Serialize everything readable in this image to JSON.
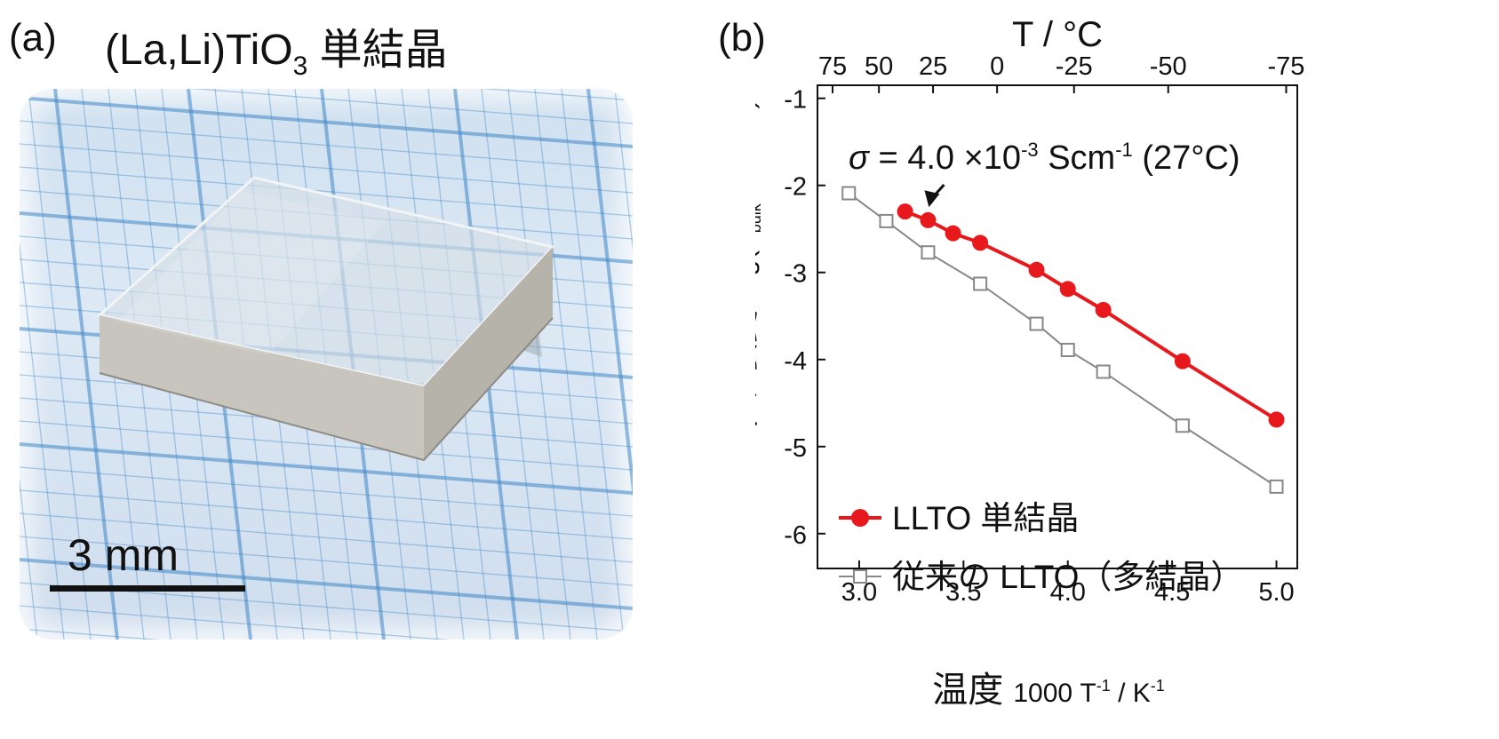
{
  "panel_a": {
    "label": "(a)",
    "title_main": "(La,Li)TiO",
    "title_sub": "3",
    "title_tail": "単結晶",
    "scale_text": "3 mm"
  },
  "panel_b": {
    "label": "(b)"
  },
  "colors": {
    "single_crystal": "#e8191d",
    "polycrystal": "#888888",
    "axis": "#111111"
  },
  "chart_data": {
    "type": "line",
    "title": "",
    "xlabel": "温度 1000 T⁻¹ / K⁻¹",
    "xlabel_parts": {
      "jp": "温度",
      "num": "1000 T",
      "sup1": "-1",
      "mid": " / K",
      "sup2": "-1"
    },
    "ylabel": "イオン伝導度 log(σbulk / Scm-1)",
    "ylabel_parts": {
      "jp": "イオン伝導度",
      "pre": "log(σ",
      "sub": "bulk",
      "mid": " / Scm",
      "sup": "-1",
      "post": ")"
    },
    "top_axis_label": "T / °C",
    "xlim": [
      2.8,
      5.1
    ],
    "ylim": [
      -6.4,
      -0.85
    ],
    "x_ticks": [
      3.0,
      3.5,
      4.0,
      4.5,
      5.0
    ],
    "x_tick_labels": [
      "3.0",
      "3.5",
      "4.0",
      "4.5",
      "5.0"
    ],
    "y_ticks": [
      -1,
      -2,
      -3,
      -4,
      -5,
      -6
    ],
    "y_tick_labels": [
      "-1",
      "-2",
      "-3",
      "-4",
      "-5",
      "-6"
    ],
    "top_ticks_celsius": [
      75,
      50,
      25,
      0,
      -25,
      -50,
      -75
    ],
    "top_tick_labels": [
      "75",
      "50",
      "25",
      "0",
      "-25",
      "-50",
      "-75"
    ],
    "grid": false,
    "legend_position": "bottom-left",
    "series": [
      {
        "name": "LLTO 単結晶",
        "marker": "filled-circle",
        "color": "#e8191d",
        "x": [
          3.22,
          3.33,
          3.45,
          3.58,
          3.85,
          4.0,
          4.17,
          4.55,
          5.0
        ],
        "y": [
          -2.3,
          -2.4,
          -2.55,
          -2.66,
          -2.97,
          -3.19,
          -3.43,
          -4.02,
          -4.69
        ]
      },
      {
        "name": "従来の LLTO（多結晶）",
        "marker": "open-square",
        "color": "#888888",
        "x": [
          2.95,
          3.13,
          3.33,
          3.58,
          3.85,
          4.0,
          4.17,
          4.55,
          5.0
        ],
        "y": [
          -2.09,
          -2.41,
          -2.77,
          -3.13,
          -3.59,
          -3.89,
          -4.14,
          -4.76,
          -5.46
        ]
      }
    ],
    "annotations": [
      {
        "text_pre": "σ",
        "text_main": " = 4.0 ×10",
        "sup1": "-3",
        "text_mid": " Scm",
        "sup2": "-1",
        "text_post": " (27°C)",
        "arrow_to_x": 3.33,
        "arrow_to_y": -2.25
      }
    ]
  }
}
